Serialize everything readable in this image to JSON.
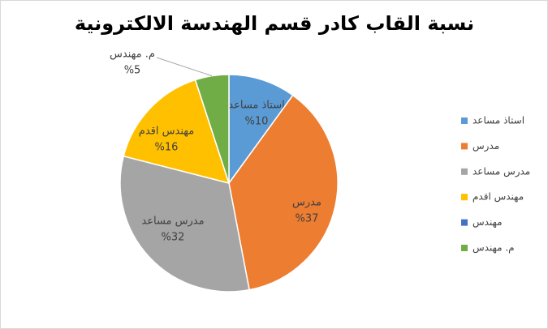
{
  "chart_data": {
    "type": "pie",
    "title": "نسبة القاب كادر قسم الهندسة الالكترونية",
    "categories": [
      "استاذ مساعد",
      "مدرس",
      "مدرس مساعد",
      "مهندس اقدم",
      "مهندس",
      "م. مهندس"
    ],
    "values": [
      10,
      37,
      32,
      16,
      0,
      5
    ],
    "value_labels": [
      "%10",
      "%37",
      "%32",
      "%16",
      null,
      "%5"
    ],
    "colors": [
      "#5b9bd5",
      "#ed7d31",
      "#a5a5a5",
      "#ffc000",
      "#4472c4",
      "#70ad47"
    ],
    "legend": "right"
  }
}
